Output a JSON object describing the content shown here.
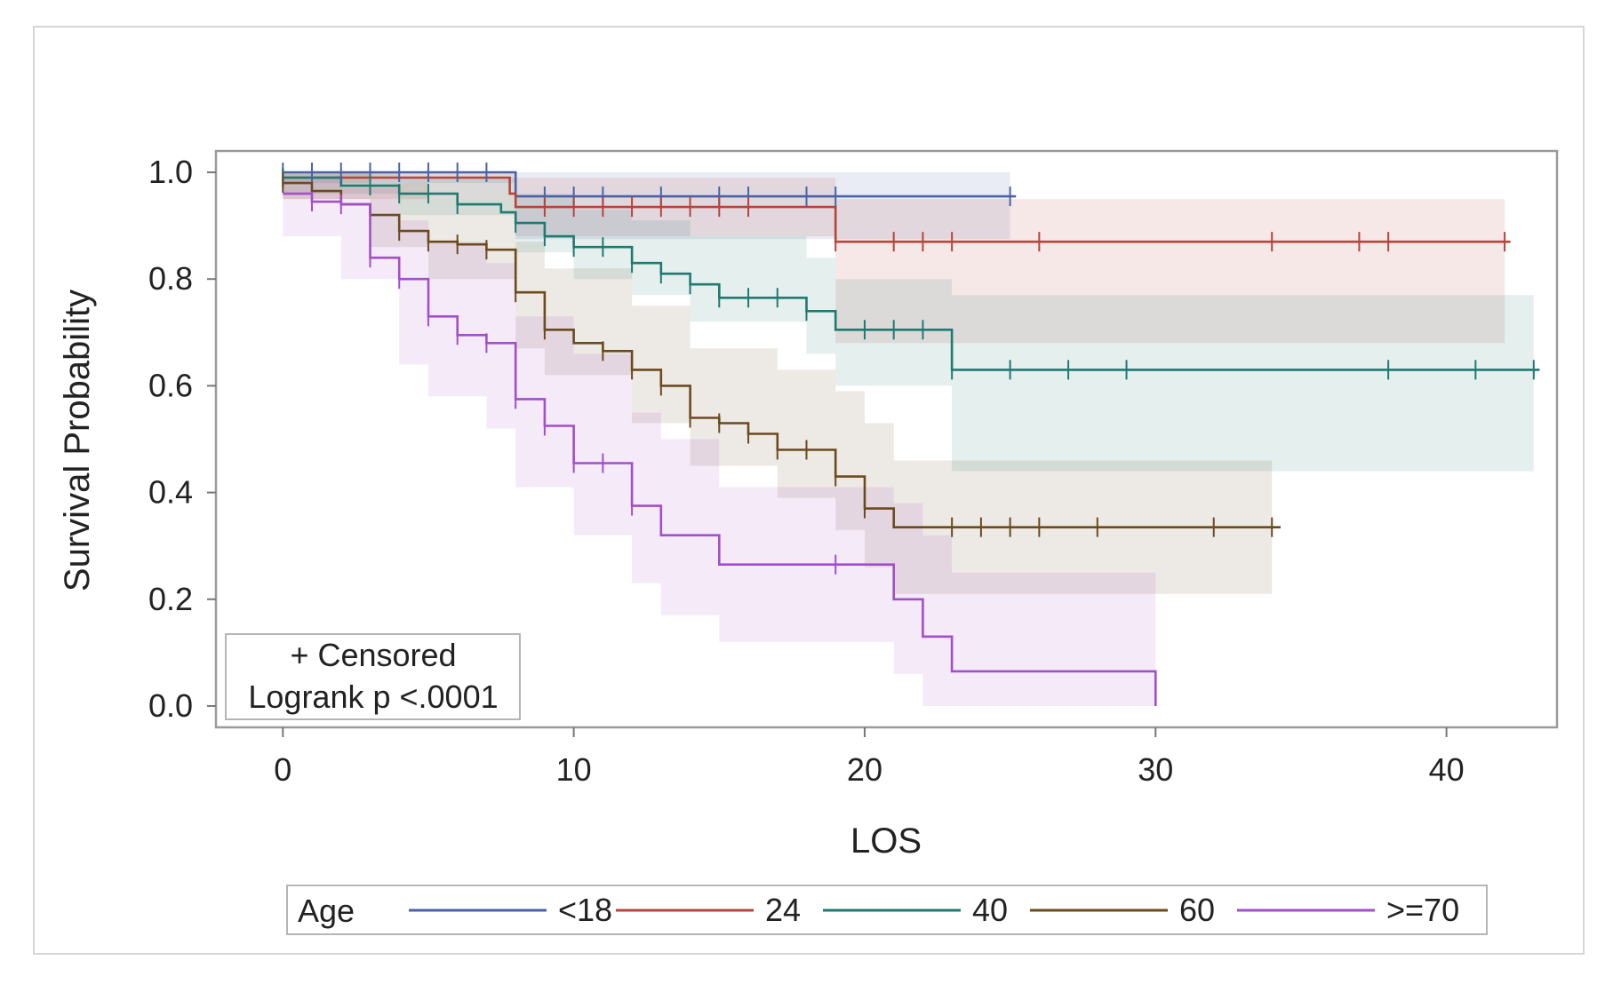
{
  "chart_data": {
    "type": "line",
    "subtype": "kaplan-meier step survival curves with confidence bands",
    "title": "",
    "xlabel": "LOS",
    "ylabel": "Survival Probability",
    "xlim": [
      -2.3,
      43.8
    ],
    "ylim": [
      -0.04,
      1.04
    ],
    "xticks": [
      0,
      10,
      20,
      30,
      40
    ],
    "xtick_labels": [
      "0",
      "10",
      "20",
      "30",
      "40"
    ],
    "yticks": [
      0,
      0.2,
      0.4,
      0.6,
      0.8,
      1.0
    ],
    "ytick_labels": [
      "0.0",
      "0.2",
      "0.4",
      "0.6",
      "0.8",
      "1.0"
    ],
    "grid": false,
    "annotation": {
      "line1": "+ Censored",
      "line2": "Logrank p <.0001",
      "placement": "bottom-left"
    },
    "legend": {
      "title": "Age",
      "placement": "bottom-outside"
    },
    "series": [
      {
        "name": "<18",
        "color": "#4a62a8",
        "steps": [
          [
            0,
            1.0
          ],
          [
            8,
            0.955
          ],
          [
            25.2,
            0.955
          ]
        ],
        "censored": [
          [
            0,
            1.0
          ],
          [
            1,
            1.0
          ],
          [
            2,
            1.0
          ],
          [
            3,
            1.0
          ],
          [
            4,
            1.0
          ],
          [
            5,
            1.0
          ],
          [
            6,
            1.0
          ],
          [
            7,
            1.0
          ],
          [
            9,
            0.955
          ],
          [
            10,
            0.955
          ],
          [
            11,
            0.955
          ],
          [
            13,
            0.955
          ],
          [
            15,
            0.955
          ],
          [
            16,
            0.955
          ],
          [
            18,
            0.955
          ],
          [
            19,
            0.955
          ],
          [
            25,
            0.955
          ]
        ],
        "band": [
          [
            0,
            0.98,
            1.0
          ],
          [
            8,
            0.875,
            1.0
          ],
          [
            25,
            0.875,
            1.0
          ]
        ]
      },
      {
        "name": "24",
        "color": "#b5443b",
        "steps": [
          [
            0,
            0.99
          ],
          [
            7.8,
            0.96
          ],
          [
            8,
            0.935
          ],
          [
            19,
            0.87
          ],
          [
            42.2,
            0.87
          ]
        ],
        "censored": [
          [
            0,
            0.99
          ],
          [
            9,
            0.935
          ],
          [
            10,
            0.935
          ],
          [
            11,
            0.935
          ],
          [
            12,
            0.935
          ],
          [
            13,
            0.935
          ],
          [
            14,
            0.935
          ],
          [
            15,
            0.935
          ],
          [
            16,
            0.935
          ],
          [
            19,
            0.87
          ],
          [
            21,
            0.87
          ],
          [
            22,
            0.87
          ],
          [
            23,
            0.87
          ],
          [
            26,
            0.87
          ],
          [
            34,
            0.87
          ],
          [
            37,
            0.87
          ],
          [
            38,
            0.87
          ],
          [
            42,
            0.87
          ]
        ],
        "band": [
          [
            0,
            0.95,
            1.0
          ],
          [
            8,
            0.88,
            0.99
          ],
          [
            19,
            0.68,
            0.95
          ],
          [
            42,
            0.68,
            0.95
          ]
        ]
      },
      {
        "name": "40",
        "color": "#1f7a70",
        "steps": [
          [
            0,
            0.99
          ],
          [
            2,
            0.975
          ],
          [
            4,
            0.96
          ],
          [
            6,
            0.94
          ],
          [
            7.5,
            0.925
          ],
          [
            8,
            0.905
          ],
          [
            9,
            0.88
          ],
          [
            10,
            0.86
          ],
          [
            12,
            0.83
          ],
          [
            13,
            0.81
          ],
          [
            14,
            0.79
          ],
          [
            15,
            0.765
          ],
          [
            18,
            0.74
          ],
          [
            19,
            0.705
          ],
          [
            23,
            0.63
          ],
          [
            43.2,
            0.63
          ]
        ],
        "censored": [
          [
            0,
            0.99
          ],
          [
            3,
            0.975
          ],
          [
            4,
            0.96
          ],
          [
            5,
            0.96
          ],
          [
            6,
            0.94
          ],
          [
            8,
            0.905
          ],
          [
            9,
            0.88
          ],
          [
            10,
            0.86
          ],
          [
            11,
            0.86
          ],
          [
            12,
            0.83
          ],
          [
            13,
            0.81
          ],
          [
            14,
            0.79
          ],
          [
            15,
            0.765
          ],
          [
            16,
            0.765
          ],
          [
            17,
            0.765
          ],
          [
            18,
            0.74
          ],
          [
            20,
            0.705
          ],
          [
            21,
            0.705
          ],
          [
            22,
            0.705
          ],
          [
            23,
            0.63
          ],
          [
            25,
            0.63
          ],
          [
            27,
            0.63
          ],
          [
            29,
            0.63
          ],
          [
            38,
            0.63
          ],
          [
            41,
            0.63
          ],
          [
            43,
            0.63
          ]
        ],
        "band": [
          [
            0,
            0.96,
            1.0
          ],
          [
            4,
            0.92,
            0.99
          ],
          [
            8,
            0.85,
            0.96
          ],
          [
            10,
            0.8,
            0.93
          ],
          [
            12,
            0.77,
            0.91
          ],
          [
            14,
            0.72,
            0.88
          ],
          [
            18,
            0.66,
            0.84
          ],
          [
            19,
            0.6,
            0.8
          ],
          [
            23,
            0.44,
            0.77
          ],
          [
            43,
            0.44,
            0.77
          ]
        ]
      },
      {
        "name": "60",
        "color": "#6b4a1e",
        "steps": [
          [
            0,
            0.98
          ],
          [
            1,
            0.965
          ],
          [
            2,
            0.94
          ],
          [
            3,
            0.92
          ],
          [
            4,
            0.89
          ],
          [
            5,
            0.87
          ],
          [
            6,
            0.865
          ],
          [
            7,
            0.855
          ],
          [
            8,
            0.775
          ],
          [
            9,
            0.705
          ],
          [
            10,
            0.68
          ],
          [
            11,
            0.665
          ],
          [
            12,
            0.63
          ],
          [
            13,
            0.6
          ],
          [
            14,
            0.54
          ],
          [
            15,
            0.53
          ],
          [
            16,
            0.51
          ],
          [
            17,
            0.48
          ],
          [
            19,
            0.43
          ],
          [
            20,
            0.37
          ],
          [
            21,
            0.335
          ],
          [
            34.3,
            0.335
          ]
        ],
        "censored": [
          [
            0,
            0.98
          ],
          [
            4,
            0.89
          ],
          [
            5,
            0.87
          ],
          [
            6,
            0.865
          ],
          [
            7,
            0.855
          ],
          [
            8,
            0.775
          ],
          [
            9,
            0.705
          ],
          [
            11,
            0.665
          ],
          [
            12,
            0.63
          ],
          [
            13,
            0.6
          ],
          [
            14,
            0.54
          ],
          [
            15,
            0.53
          ],
          [
            16,
            0.51
          ],
          [
            17,
            0.48
          ],
          [
            18,
            0.48
          ],
          [
            19,
            0.43
          ],
          [
            20,
            0.37
          ],
          [
            23,
            0.335
          ],
          [
            24,
            0.335
          ],
          [
            25,
            0.335
          ],
          [
            26,
            0.335
          ],
          [
            28,
            0.335
          ],
          [
            32,
            0.335
          ],
          [
            34,
            0.335
          ]
        ],
        "band": [
          [
            0,
            0.95,
            1.0
          ],
          [
            3,
            0.86,
            0.98
          ],
          [
            5,
            0.8,
            0.95
          ],
          [
            8,
            0.67,
            0.87
          ],
          [
            9,
            0.62,
            0.82
          ],
          [
            12,
            0.53,
            0.75
          ],
          [
            14,
            0.45,
            0.67
          ],
          [
            17,
            0.39,
            0.63
          ],
          [
            19,
            0.33,
            0.59
          ],
          [
            20,
            0.26,
            0.53
          ],
          [
            21,
            0.21,
            0.46
          ],
          [
            34,
            0.21,
            0.46
          ]
        ]
      },
      {
        "name": ">=70",
        "color": "#a24fc9",
        "steps": [
          [
            0,
            0.96
          ],
          [
            1,
            0.945
          ],
          [
            2,
            0.94
          ],
          [
            3,
            0.84
          ],
          [
            4,
            0.8
          ],
          [
            5,
            0.73
          ],
          [
            6,
            0.695
          ],
          [
            7,
            0.68
          ],
          [
            8,
            0.575
          ],
          [
            9,
            0.525
          ],
          [
            10,
            0.455
          ],
          [
            12,
            0.375
          ],
          [
            13,
            0.32
          ],
          [
            15,
            0.265
          ],
          [
            21,
            0.2
          ],
          [
            22,
            0.13
          ],
          [
            23,
            0.065
          ],
          [
            30,
            0.065
          ],
          [
            30,
            0.0
          ]
        ],
        "censored": [
          [
            1,
            0.945
          ],
          [
            2,
            0.94
          ],
          [
            3,
            0.84
          ],
          [
            4,
            0.8
          ],
          [
            5,
            0.73
          ],
          [
            6,
            0.695
          ],
          [
            7,
            0.68
          ],
          [
            8,
            0.575
          ],
          [
            9,
            0.525
          ],
          [
            10,
            0.455
          ],
          [
            11,
            0.455
          ],
          [
            12,
            0.375
          ],
          [
            19,
            0.265
          ]
        ],
        "band": [
          [
            0,
            0.88,
            0.99
          ],
          [
            2,
            0.8,
            0.97
          ],
          [
            4,
            0.64,
            0.91
          ],
          [
            5,
            0.58,
            0.87
          ],
          [
            7,
            0.52,
            0.83
          ],
          [
            8,
            0.41,
            0.73
          ],
          [
            10,
            0.32,
            0.66
          ],
          [
            12,
            0.23,
            0.55
          ],
          [
            13,
            0.17,
            0.5
          ],
          [
            15,
            0.12,
            0.41
          ],
          [
            21,
            0.06,
            0.38
          ],
          [
            22,
            0.0,
            0.32
          ],
          [
            23,
            0.0,
            0.25
          ],
          [
            30,
            0.0,
            0.25
          ]
        ]
      }
    ]
  }
}
